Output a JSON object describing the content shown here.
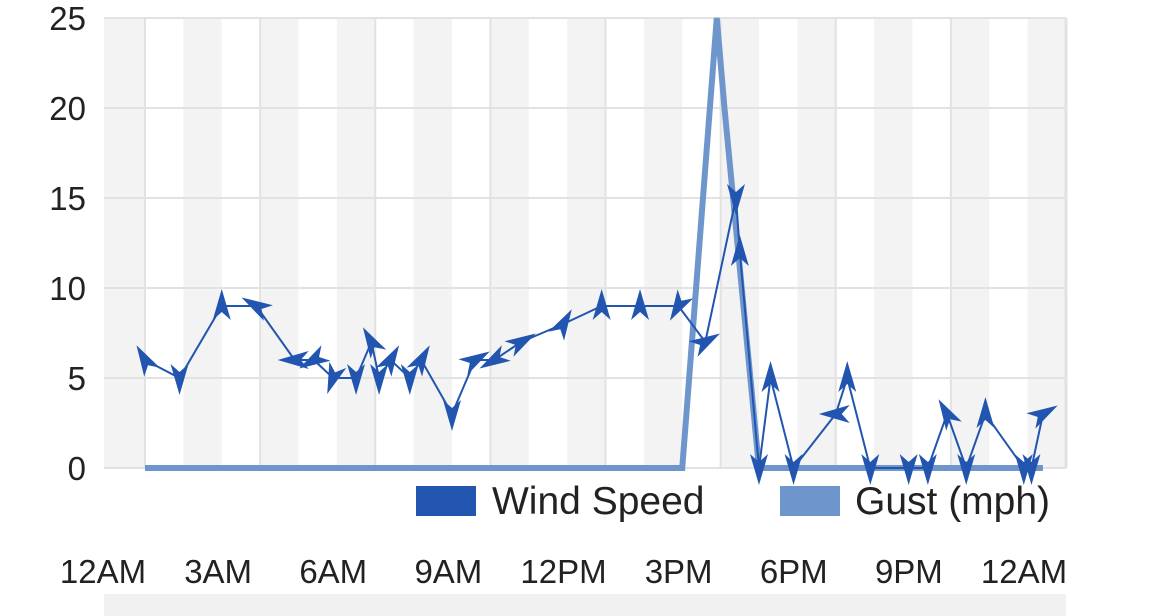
{
  "chart_data": {
    "type": "line",
    "title": "",
    "xlabel": "",
    "ylabel": "",
    "x_ticks": [
      "12AM",
      "3AM",
      "6AM",
      "9AM",
      "12PM",
      "3PM",
      "6PM",
      "9PM",
      "12AM"
    ],
    "y_ticks": [
      "0",
      "5",
      "10",
      "15",
      "20",
      "25"
    ],
    "xlim_hours": [
      0,
      24
    ],
    "ylim": [
      0,
      25
    ],
    "grid": true,
    "legend_placement": "bottom-right",
    "series": [
      {
        "name": "Wind Speed",
        "color": "#2255b0",
        "marker": "wind-direction-arrow",
        "points": [
          {
            "t": 0.0,
            "v": 6,
            "dir": 330
          },
          {
            "t": 0.9,
            "v": 5,
            "dir": 180
          },
          {
            "t": 2.0,
            "v": 9,
            "dir": 0
          },
          {
            "t": 2.9,
            "v": 9,
            "dir": 300
          },
          {
            "t": 3.9,
            "v": 6,
            "dir": 270
          },
          {
            "t": 4.4,
            "v": 6,
            "dir": 240
          },
          {
            "t": 4.9,
            "v": 5,
            "dir": 200
          },
          {
            "t": 5.5,
            "v": 5,
            "dir": 180
          },
          {
            "t": 5.9,
            "v": 7,
            "dir": 330
          },
          {
            "t": 6.1,
            "v": 5,
            "dir": 180
          },
          {
            "t": 6.4,
            "v": 6,
            "dir": 30
          },
          {
            "t": 6.9,
            "v": 5,
            "dir": 180
          },
          {
            "t": 7.2,
            "v": 6,
            "dir": 30
          },
          {
            "t": 8.0,
            "v": 3,
            "dir": 180
          },
          {
            "t": 8.6,
            "v": 6,
            "dir": 60
          },
          {
            "t": 9.1,
            "v": 6,
            "dir": 240
          },
          {
            "t": 9.8,
            "v": 7,
            "dir": 60
          },
          {
            "t": 10.9,
            "v": 8,
            "dir": 30
          },
          {
            "t": 11.9,
            "v": 9,
            "dir": 0
          },
          {
            "t": 12.9,
            "v": 9,
            "dir": 0
          },
          {
            "t": 13.9,
            "v": 9,
            "dir": 210
          },
          {
            "t": 14.6,
            "v": 7,
            "dir": 60
          },
          {
            "t": 15.4,
            "v": 15,
            "dir": 180
          },
          {
            "t": 15.5,
            "v": 12,
            "dir": 0
          },
          {
            "t": 16.0,
            "v": 0,
            "dir": 180
          },
          {
            "t": 16.3,
            "v": 5,
            "dir": 0
          },
          {
            "t": 16.9,
            "v": 0,
            "dir": 180
          },
          {
            "t": 18.0,
            "v": 3,
            "dir": 270
          },
          {
            "t": 18.3,
            "v": 5,
            "dir": 0
          },
          {
            "t": 18.9,
            "v": 0,
            "dir": 180
          },
          {
            "t": 19.9,
            "v": 0,
            "dir": 180
          },
          {
            "t": 20.4,
            "v": 0,
            "dir": 180
          },
          {
            "t": 20.9,
            "v": 3,
            "dir": 330
          },
          {
            "t": 21.4,
            "v": 0,
            "dir": 180
          },
          {
            "t": 21.9,
            "v": 3,
            "dir": 0
          },
          {
            "t": 22.9,
            "v": 0,
            "dir": 180
          },
          {
            "t": 23.1,
            "v": 0,
            "dir": 180
          },
          {
            "t": 23.4,
            "v": 3,
            "dir": 60
          }
        ]
      },
      {
        "name": "Gust (mph)",
        "color": "#6e96cc",
        "points": [
          {
            "t": 0.0,
            "v": 0
          },
          {
            "t": 14.0,
            "v": 0
          },
          {
            "t": 14.9,
            "v": 25
          },
          {
            "t": 15.1,
            "v": 20
          },
          {
            "t": 16.0,
            "v": 0
          },
          {
            "t": 23.4,
            "v": 0
          }
        ]
      }
    ]
  }
}
